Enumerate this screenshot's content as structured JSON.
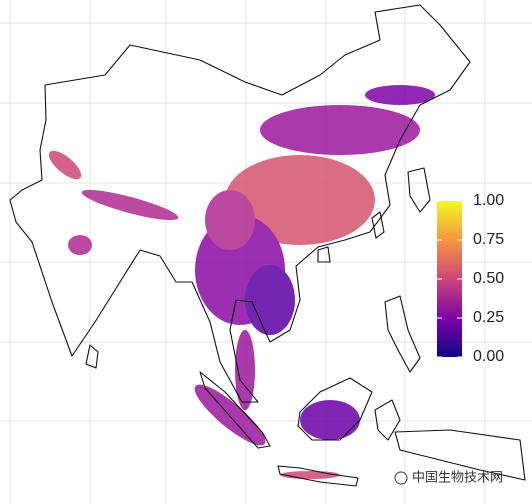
{
  "colorbar": {
    "lim": [
      0,
      1
    ],
    "ticks": [
      {
        "value": 1,
        "label": "1.00"
      },
      {
        "value": 0.75,
        "label": "0.75"
      },
      {
        "value": 0.5,
        "label": "0.50"
      },
      {
        "value": 0.25,
        "label": "0.25"
      },
      {
        "value": 0,
        "label": "0.00"
      }
    ]
  },
  "watermark": "中国生物技术网"
}
